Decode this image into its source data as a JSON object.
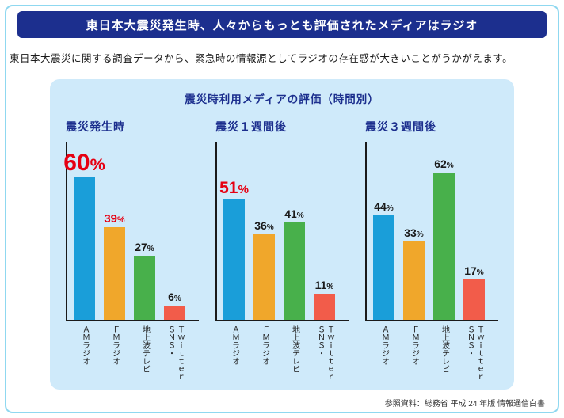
{
  "header": {
    "title": "東日本大震災発生時、人々からもっとも評価されたメディアはラジオ"
  },
  "intro": {
    "text": "東日本大震災に関する調査データから、緊急時の情報源としてラジオの存在感が大きいことがうかがえます。"
  },
  "footer": {
    "source": "参照資料：総務省 平成 24 年版 情報通信白書"
  },
  "colors": {
    "accent_navy": "#1c2f8e",
    "panel_blue": "#cfeafa",
    "frame_blue": "#8fd8f0",
    "highlight_red": "#e60012"
  },
  "chart_data": {
    "type": "bar",
    "title": "震災時利用メディアの評価（時間別）",
    "categories": [
      "ＡＭラジオ",
      "ＦＭラジオ",
      "地上波テレビ",
      "ＳＮＳ・\nＴｗｉｔｔｅｒ"
    ],
    "category_keys": [
      "am-radio",
      "fm-radio",
      "terrestrial-tv",
      "sns-twitter"
    ],
    "bar_colors": [
      "#1a9ed9",
      "#f0a72b",
      "#48b04b",
      "#f25c4a"
    ],
    "unit": "%",
    "ylim": [
      0,
      70
    ],
    "grid": false,
    "legend": "none",
    "series": [
      {
        "name": "震災発生時",
        "values": [
          60,
          39,
          27,
          6
        ],
        "value_styles": [
          "huge",
          "red",
          "normal",
          "normal"
        ]
      },
      {
        "name": "震災１週間後",
        "values": [
          51,
          36,
          41,
          11
        ],
        "value_styles": [
          "large",
          "normal",
          "normal",
          "normal"
        ]
      },
      {
        "name": "震災３週間後",
        "values": [
          44,
          33,
          62,
          17
        ],
        "value_styles": [
          "normal",
          "normal",
          "normal",
          "normal"
        ]
      }
    ]
  }
}
